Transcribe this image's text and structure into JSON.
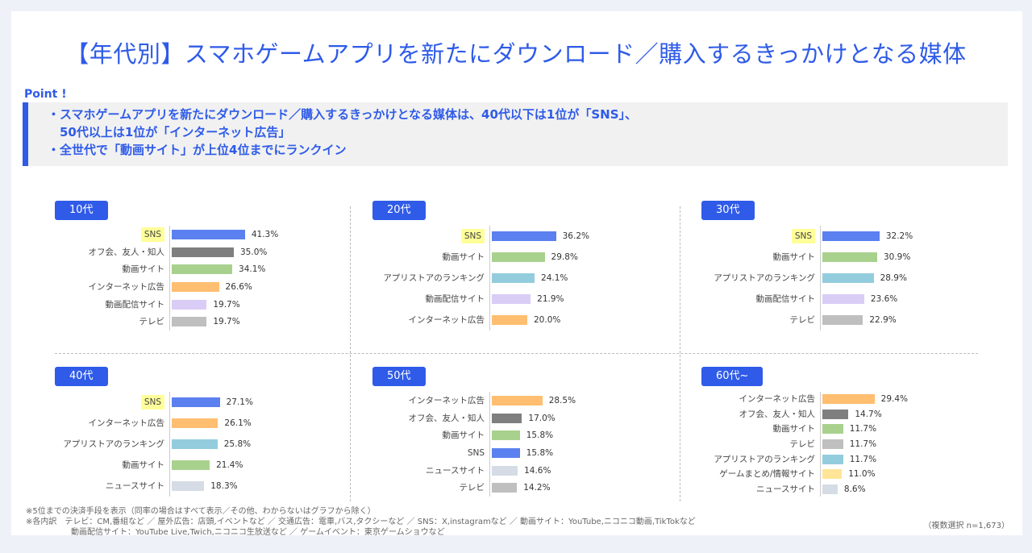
{
  "title": "【年代別】スマホゲームアプリを新たにダウンロード／購入するきっかけとなる媒体",
  "point": {
    "label": "Point !",
    "lines": [
      "・スマホゲームアプリを新たにダウンロード／購入するきっかけとなる媒体は、40代以下は1位が「SNS」、",
      "　50代以上は1位が「インターネット広告」",
      "・全世代で「動画サイト」が上位4位までにランクイン"
    ]
  },
  "colors": {
    "SNS": "#5b80ef",
    "オフ会、友人・知人": "#7f7f7f",
    "動画サイト": "#a9d18e",
    "インターネット広告": "#ffbe70",
    "動画配信サイト": "#d9cdf6",
    "テレビ": "#bfbfbf",
    "アプリストアのランキング": "#93cddd",
    "ニュースサイト": "#d6dce5",
    "ゲームまとめ/情報サイト": "#ffe597"
  },
  "chart_data": {
    "type": "bar",
    "unit": "%",
    "panels": [
      {
        "name": "10代",
        "items": [
          {
            "label": "SNS",
            "value": 41.3,
            "display": "41.3%"
          },
          {
            "label": "オフ会、友人・知人",
            "value": 35.0,
            "display": "35.0%"
          },
          {
            "label": "動画サイト",
            "value": 34.1,
            "display": "34.1%"
          },
          {
            "label": "インターネット広告",
            "value": 26.6,
            "display": "26.6%"
          },
          {
            "label": "動画配信サイト",
            "value": 19.7,
            "display": "19.7%"
          },
          {
            "label": "テレビ",
            "value": 19.7,
            "display": "19.7%"
          }
        ]
      },
      {
        "name": "20代",
        "items": [
          {
            "label": "SNS",
            "value": 36.2,
            "display": "36.2%"
          },
          {
            "label": "動画サイト",
            "value": 29.8,
            "display": "29.8%"
          },
          {
            "label": "アプリストアのランキング",
            "value": 24.1,
            "display": "24.1%"
          },
          {
            "label": "動画配信サイト",
            "value": 21.9,
            "display": "21.9%"
          },
          {
            "label": "インターネット広告",
            "value": 20.0,
            "display": "20.0%"
          }
        ]
      },
      {
        "name": "30代",
        "items": [
          {
            "label": "SNS",
            "value": 32.2,
            "display": "32.2%"
          },
          {
            "label": "動画サイト",
            "value": 30.9,
            "display": "30.9%"
          },
          {
            "label": "アプリストアのランキング",
            "value": 28.9,
            "display": "28.9%"
          },
          {
            "label": "動画配信サイト",
            "value": 23.6,
            "display": "23.6%"
          },
          {
            "label": "テレビ",
            "value": 22.9,
            "display": "22.9%"
          }
        ]
      },
      {
        "name": "40代",
        "items": [
          {
            "label": "SNS",
            "value": 27.1,
            "display": "27.1%"
          },
          {
            "label": "インターネット広告",
            "value": 26.1,
            "display": "26.1%"
          },
          {
            "label": "アプリストアのランキング",
            "value": 25.8,
            "display": "25.8%"
          },
          {
            "label": "動画サイト",
            "value": 21.4,
            "display": "21.4%"
          },
          {
            "label": "ニュースサイト",
            "value": 18.3,
            "display": "18.3%"
          }
        ]
      },
      {
        "name": "50代",
        "items": [
          {
            "label": "インターネット広告",
            "value": 28.5,
            "display": "28.5%"
          },
          {
            "label": "オフ会、友人・知人",
            "value": 17.0,
            "display": "17.0%"
          },
          {
            "label": "動画サイト",
            "value": 15.8,
            "display": "15.8%"
          },
          {
            "label": "SNS",
            "value": 15.8,
            "display": "15.8%"
          },
          {
            "label": "ニュースサイト",
            "value": 14.6,
            "display": "14.6%"
          },
          {
            "label": "テレビ",
            "value": 14.2,
            "display": "14.2%"
          }
        ]
      },
      {
        "name": "60代~",
        "items": [
          {
            "label": "インターネット広告",
            "value": 29.4,
            "display": "29.4%"
          },
          {
            "label": "オフ会、友人・知人",
            "value": 14.7,
            "display": "14.7%"
          },
          {
            "label": "動画サイト",
            "value": 11.7,
            "display": "11.7%"
          },
          {
            "label": "テレビ",
            "value": 11.7,
            "display": "11.7%"
          },
          {
            "label": "アプリストアのランキング",
            "value": 11.7,
            "display": "11.7%"
          },
          {
            "label": "ゲームまとめ/情報サイト",
            "value": 11.0,
            "display": "11.0%"
          },
          {
            "label": "ニュースサイト",
            "value": 8.6,
            "display": "8.6%"
          }
        ]
      }
    ]
  },
  "notes": [
    "※5位までの決済手段を表示（同率の場合はすべて表示／その他、わからないはグラフから除く）",
    "※各内訳　テレビ：CM,番組など ／ 屋外広告：店頭,イベントなど ／ 交通広告：電車,バス,タクシーなど ／ SNS：X,instagramなど ／ 動画サイト：YouTube,ニコニコ動画,TikTokなど",
    "動画配信サイト：YouTube Live,Twich,ニコニコ生放送など ／ ゲームイベント：東京ゲームショウなど"
  ],
  "sample": "（複数選択 n=1,673）"
}
